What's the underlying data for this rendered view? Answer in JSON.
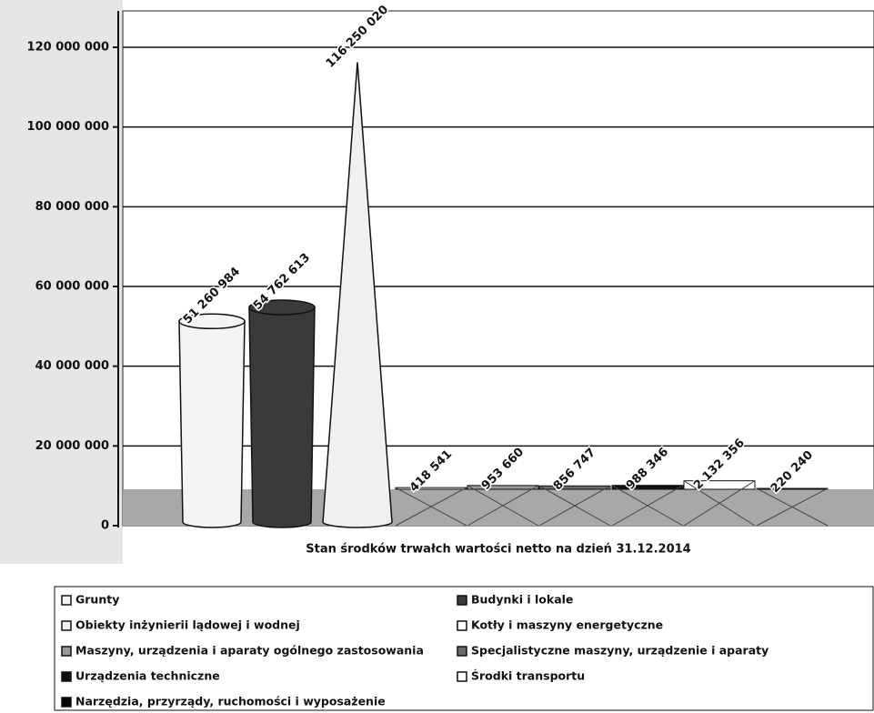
{
  "chart_data": {
    "type": "bar",
    "x_label": "Stan środków trwałch wartości netto na dzień 31.12.2014",
    "categories": [
      "Grunty",
      "Budynki i lokale",
      "Obiekty inżynierii lądowej i wodnej",
      "Kotły i maszyny energetyczne",
      "Maszyny, urządzenia i aparaty ogólnego zastosowania",
      "Specjalistyczne maszyny, urządzenie i aparaty",
      "Urządzenia techniczne",
      "Środki transportu",
      "Narzędzia, przyrządy, ruchomości i wyposażenie"
    ],
    "values": [
      51260984,
      54762613,
      116250020,
      418541,
      953660,
      856747,
      988346,
      2132356,
      220240
    ],
    "value_labels": [
      "51 260 984",
      "54 762 613",
      "116 250 020",
      "418 541",
      "953 660",
      "856 747",
      "988 346",
      "2 132 356",
      "220 240"
    ],
    "colors": [
      "#f4f4f4",
      "#3a3a3a",
      "#f0f0f0",
      "#ffffff",
      "#9a9a9a",
      "#6a6a6a",
      "#111111",
      "#ffffff",
      "#050505"
    ],
    "bar_shapes": [
      "cylinder",
      "cylinder",
      "cone",
      "box",
      "box",
      "box",
      "box",
      "box",
      "box"
    ],
    "ylim": [
      0,
      120000000
    ],
    "yticks": [
      {
        "value": 0,
        "label": "0"
      },
      {
        "value": 20000000,
        "label": "20 000 000"
      },
      {
        "value": 40000000,
        "label": "40 000 000"
      },
      {
        "value": 60000000,
        "label": "60 000 000"
      },
      {
        "value": 80000000,
        "label": "80 000 000"
      },
      {
        "value": 100000000,
        "label": "100 000 000"
      },
      {
        "value": 120000000,
        "label": "120 000 000"
      }
    ],
    "grid": true,
    "legend": "bottom"
  }
}
